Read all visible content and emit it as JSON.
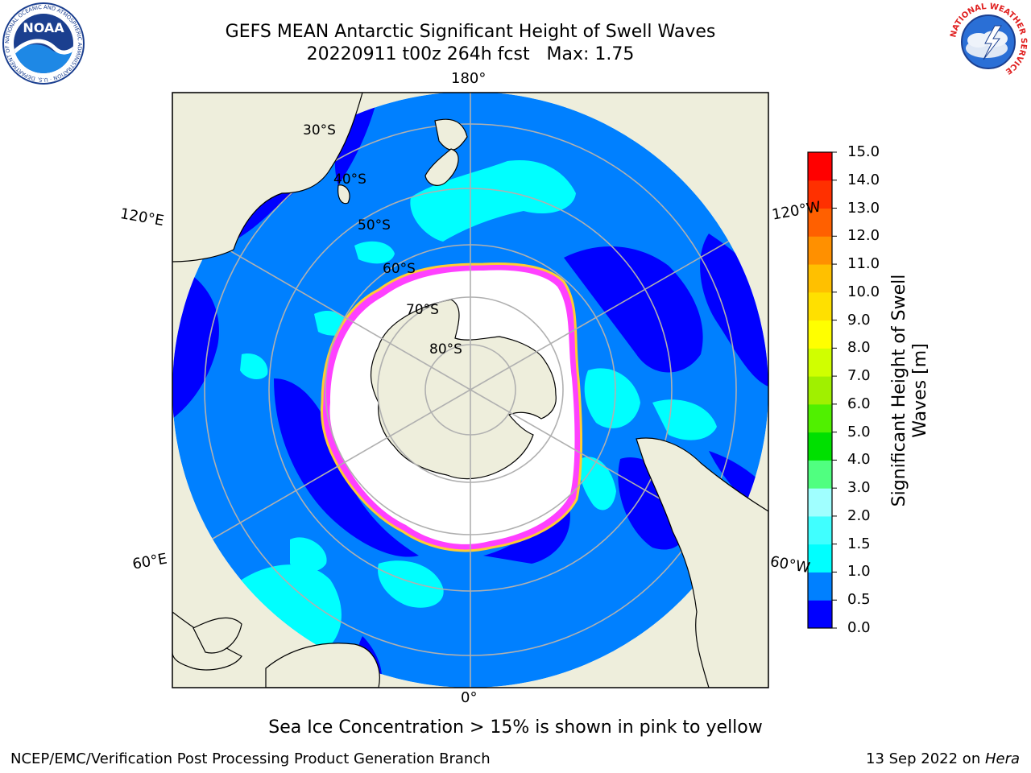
{
  "title": {
    "line1": "GEFS MEAN Antarctic Significant Height of Swell Waves",
    "line2": "20220911 t00z 264h fcst   Max: 1.75"
  },
  "map": {
    "projection": "south-polar-stereographic",
    "longitude_labels": [
      "180°",
      "120°E",
      "120°W",
      "60°E",
      "60°W",
      "0°"
    ],
    "latitude_labels": [
      "30°S",
      "40°S",
      "50°S",
      "60°S",
      "70°S",
      "80°S"
    ],
    "colors": {
      "land": "#eeeedc",
      "ocean_mid": "#0080ff",
      "ocean_low": "#0000ff",
      "ocean_high": "#00ffff",
      "sea_ice": "#ffffff",
      "ice_edge_pink": "#ff40ff",
      "ice_edge_yellow": "#ffcc33",
      "grid": "#b0b0b0"
    }
  },
  "colorbar": {
    "label": "Significant Height of Swell Waves [m]",
    "ticks": [
      "0.0",
      "0.5",
      "1.0",
      "1.5",
      "2.0",
      "3.0",
      "4.0",
      "5.0",
      "6.0",
      "7.0",
      "8.0",
      "9.0",
      "10.0",
      "11.0",
      "12.0",
      "13.0",
      "14.0",
      "15.0"
    ],
    "colors": [
      "#0000ff",
      "#0080ff",
      "#00ffff",
      "#40ffff",
      "#a0ffff",
      "#50ff80",
      "#00e000",
      "#50f000",
      "#a0f000",
      "#d0ff00",
      "#ffff00",
      "#ffe000",
      "#ffc000",
      "#ff9000",
      "#ff6000",
      "#ff3000",
      "#ff0000"
    ]
  },
  "note": "Sea Ice Concentration > 15% is shown in pink to yellow",
  "footer": {
    "left": "NCEP/EMC/Verification Post Processing Product Generation Branch",
    "right_prefix": "13 Sep 2022 on ",
    "right_machine": "Hera"
  },
  "logos": {
    "noaa_text": "NOAA",
    "noaa_ring": "NATIONAL OCEANIC AND ATMOSPHERIC ADMINISTRATION · U.S. DEPARTMENT OF COMMERCE",
    "nws_ring": "NATIONAL WEATHER SERVICE"
  }
}
